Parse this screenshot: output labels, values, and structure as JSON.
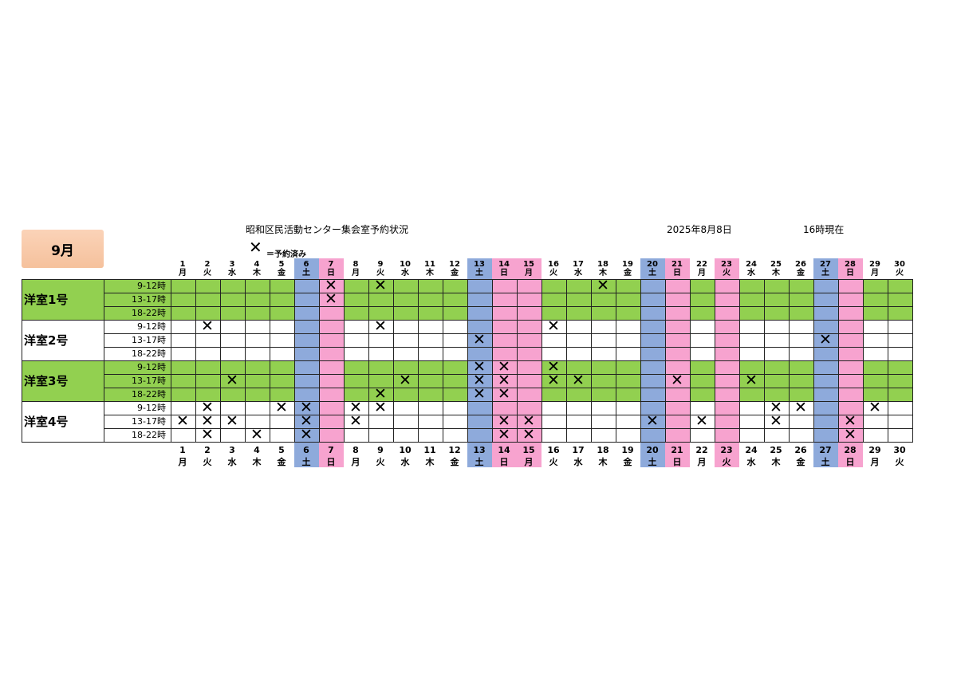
{
  "month_label": "9月",
  "title": "昭和区民活動センター集会室予約状況",
  "as_of_date": "2025年8月8日",
  "as_of_time": "16時現在",
  "legend": {
    "mark": "✕",
    "label": "＝予約済み"
  },
  "colors": {
    "saturday": "#8eaadb",
    "sunday_holiday": "#f7a3cf",
    "booked_row": "#92d050",
    "border": "#222222"
  },
  "days": [
    {
      "d": "1",
      "w": "月",
      "t": "w"
    },
    {
      "d": "2",
      "w": "火",
      "t": "w"
    },
    {
      "d": "3",
      "w": "水",
      "t": "w"
    },
    {
      "d": "4",
      "w": "木",
      "t": "w"
    },
    {
      "d": "5",
      "w": "金",
      "t": "w"
    },
    {
      "d": "6",
      "w": "土",
      "t": "sat"
    },
    {
      "d": "7",
      "w": "日",
      "t": "sun"
    },
    {
      "d": "8",
      "w": "月",
      "t": "w"
    },
    {
      "d": "9",
      "w": "火",
      "t": "w"
    },
    {
      "d": "10",
      "w": "水",
      "t": "w"
    },
    {
      "d": "11",
      "w": "木",
      "t": "w"
    },
    {
      "d": "12",
      "w": "金",
      "t": "w"
    },
    {
      "d": "13",
      "w": "土",
      "t": "sat"
    },
    {
      "d": "14",
      "w": "日",
      "t": "sun"
    },
    {
      "d": "15",
      "w": "月",
      "t": "sun"
    },
    {
      "d": "16",
      "w": "火",
      "t": "w"
    },
    {
      "d": "17",
      "w": "水",
      "t": "w"
    },
    {
      "d": "18",
      "w": "木",
      "t": "w"
    },
    {
      "d": "19",
      "w": "金",
      "t": "w"
    },
    {
      "d": "20",
      "w": "土",
      "t": "sat"
    },
    {
      "d": "21",
      "w": "日",
      "t": "sun"
    },
    {
      "d": "22",
      "w": "月",
      "t": "w"
    },
    {
      "d": "23",
      "w": "火",
      "t": "sun"
    },
    {
      "d": "24",
      "w": "水",
      "t": "w"
    },
    {
      "d": "25",
      "w": "木",
      "t": "w"
    },
    {
      "d": "26",
      "w": "金",
      "t": "w"
    },
    {
      "d": "27",
      "w": "土",
      "t": "sat"
    },
    {
      "d": "28",
      "w": "日",
      "t": "sun"
    },
    {
      "d": "29",
      "w": "月",
      "t": "w"
    },
    {
      "d": "30",
      "w": "火",
      "t": "w"
    }
  ],
  "rooms": [
    {
      "name": "洋室1号",
      "green": true,
      "slots": [
        {
          "label": "9-12時",
          "booked": [
            7,
            9,
            18
          ]
        },
        {
          "label": "13-17時",
          "booked": [
            7
          ]
        },
        {
          "label": "18-22時",
          "booked": []
        }
      ]
    },
    {
      "name": "洋室2号",
      "green": false,
      "slots": [
        {
          "label": "9-12時",
          "booked": [
            2,
            9,
            16
          ]
        },
        {
          "label": "13-17時",
          "booked": [
            13,
            27
          ]
        },
        {
          "label": "18-22時",
          "booked": []
        }
      ]
    },
    {
      "name": "洋室3号",
      "green": true,
      "slots": [
        {
          "label": "9-12時",
          "booked": [
            13,
            14,
            16
          ]
        },
        {
          "label": "13-17時",
          "booked": [
            3,
            10,
            13,
            14,
            16,
            17,
            21,
            24
          ]
        },
        {
          "label": "18-22時",
          "booked": [
            9,
            13,
            14
          ]
        }
      ]
    },
    {
      "name": "洋室4号",
      "green": false,
      "slots": [
        {
          "label": "9-12時",
          "booked": [
            2,
            5,
            6,
            8,
            9,
            25,
            26,
            29
          ]
        },
        {
          "label": "13-17時",
          "booked": [
            1,
            2,
            3,
            6,
            8,
            14,
            15,
            20,
            22,
            25,
            28
          ]
        },
        {
          "label": "18-22時",
          "booked": [
            2,
            4,
            6,
            14,
            15,
            28
          ]
        }
      ]
    }
  ]
}
